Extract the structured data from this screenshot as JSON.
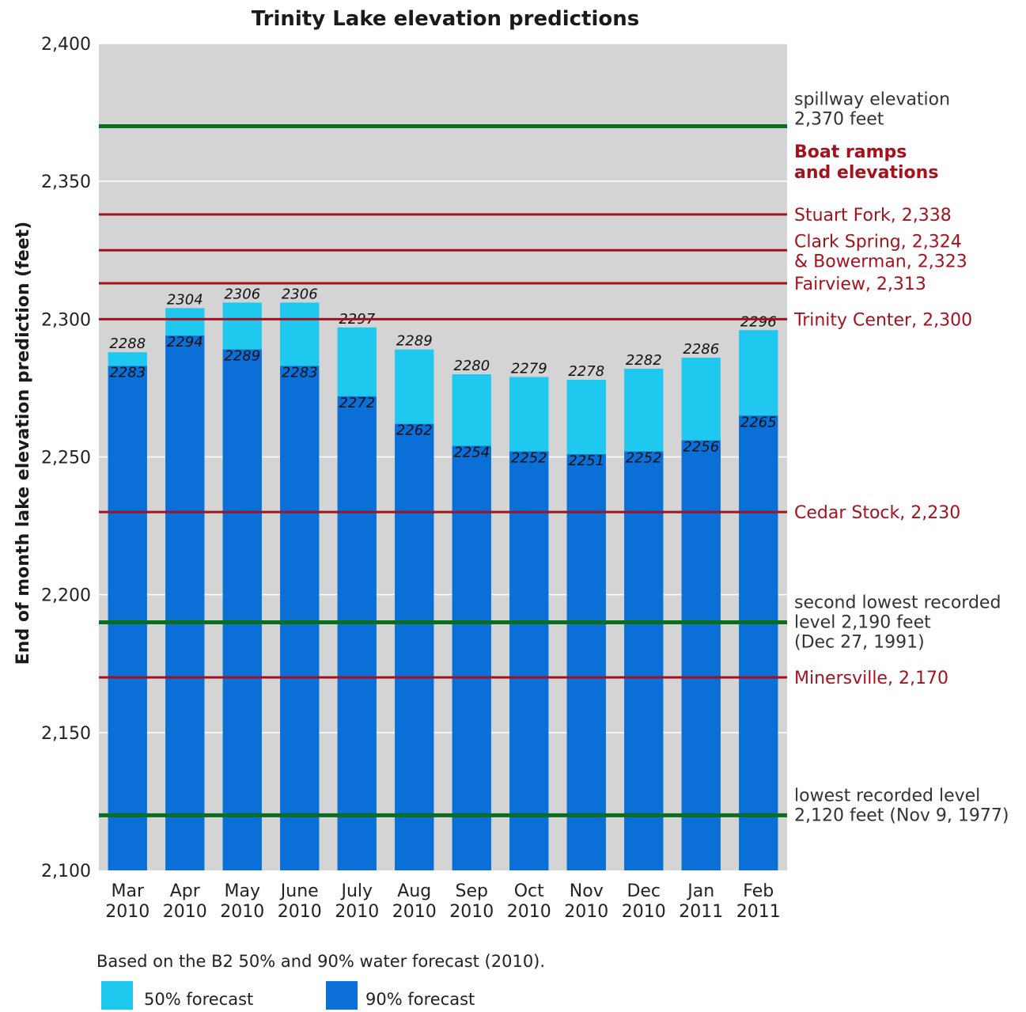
{
  "chart_data": {
    "type": "bar",
    "title": "Trinity Lake elevation predictions",
    "ylabel": "End of month lake elevation prediction (feet)",
    "xlabel": "",
    "ylim": [
      2100,
      2400
    ],
    "yticks": [
      2100,
      2150,
      2200,
      2250,
      2300,
      2350,
      2400
    ],
    "ytick_labels": [
      "2,100",
      "2,150",
      "2,200",
      "2,250",
      "2,300",
      "2,350",
      "2,400"
    ],
    "categories": [
      {
        "month": "Mar",
        "year": "2010"
      },
      {
        "month": "Apr",
        "year": "2010"
      },
      {
        "month": "May",
        "year": "2010"
      },
      {
        "month": "June",
        "year": "2010"
      },
      {
        "month": "July",
        "year": "2010"
      },
      {
        "month": "Aug",
        "year": "2010"
      },
      {
        "month": "Sep",
        "year": "2010"
      },
      {
        "month": "Oct",
        "year": "2010"
      },
      {
        "month": "Nov",
        "year": "2010"
      },
      {
        "month": "Dec",
        "year": "2010"
      },
      {
        "month": "Jan",
        "year": "2011"
      },
      {
        "month": "Feb",
        "year": "2011"
      }
    ],
    "series": [
      {
        "name": "50% forecast",
        "color": "#1ec8ee",
        "values": [
          2288,
          2304,
          2306,
          2306,
          2297,
          2289,
          2280,
          2279,
          2278,
          2282,
          2286,
          2296
        ]
      },
      {
        "name": "90% forecast",
        "color": "#0a6fd6",
        "values": [
          2283,
          2294,
          2289,
          2283,
          2272,
          2262,
          2254,
          2252,
          2251,
          2252,
          2256,
          2265
        ]
      }
    ],
    "reference_lines": [
      {
        "value": 2370,
        "color": "#0a6e1e",
        "lines": [
          "spillway elevation",
          "2,370 feet"
        ],
        "text_color": "#333333"
      },
      {
        "value": 2338,
        "color": "#a5121e",
        "lines": [
          "Stuart Fork, 2,338"
        ],
        "text_color": "#a5121e"
      },
      {
        "value": 2325,
        "color": "#a5121e",
        "lines": [
          "Clark Spring, 2,324",
          "& Bowerman, 2,323"
        ],
        "text_color": "#a5121e"
      },
      {
        "value": 2313,
        "color": "#a5121e",
        "lines": [
          "Fairview, 2,313"
        ],
        "text_color": "#a5121e"
      },
      {
        "value": 2300,
        "color": "#a5121e",
        "lines": [
          "Trinity Center, 2,300"
        ],
        "text_color": "#a5121e"
      },
      {
        "value": 2230,
        "color": "#a5121e",
        "lines": [
          "Cedar Stock, 2,230"
        ],
        "text_color": "#a5121e"
      },
      {
        "value": 2190,
        "color": "#0a6e1e",
        "lines": [
          "second lowest recorded",
          "level 2,190 feet",
          "(Dec 27, 1991)"
        ],
        "text_color": "#333333"
      },
      {
        "value": 2170,
        "color": "#a5121e",
        "lines": [
          "Minersville, 2,170"
        ],
        "text_color": "#a5121e"
      },
      {
        "value": 2120,
        "color": "#0a6e1e",
        "lines": [
          "lowest recorded level",
          "2,120 feet (Nov 9, 1977)"
        ],
        "text_color": "#333333"
      }
    ],
    "boat_ramps_heading": [
      "Boat ramps",
      "and elevations"
    ],
    "grid": true,
    "legend_position": "bottom-left"
  },
  "footnote": "Based on the B2 50% and 90% water forecast (2010).",
  "colors": {
    "plot_background": "#d4d4d4",
    "gridline": "#ffffff",
    "heading_red": "#a5121e"
  }
}
